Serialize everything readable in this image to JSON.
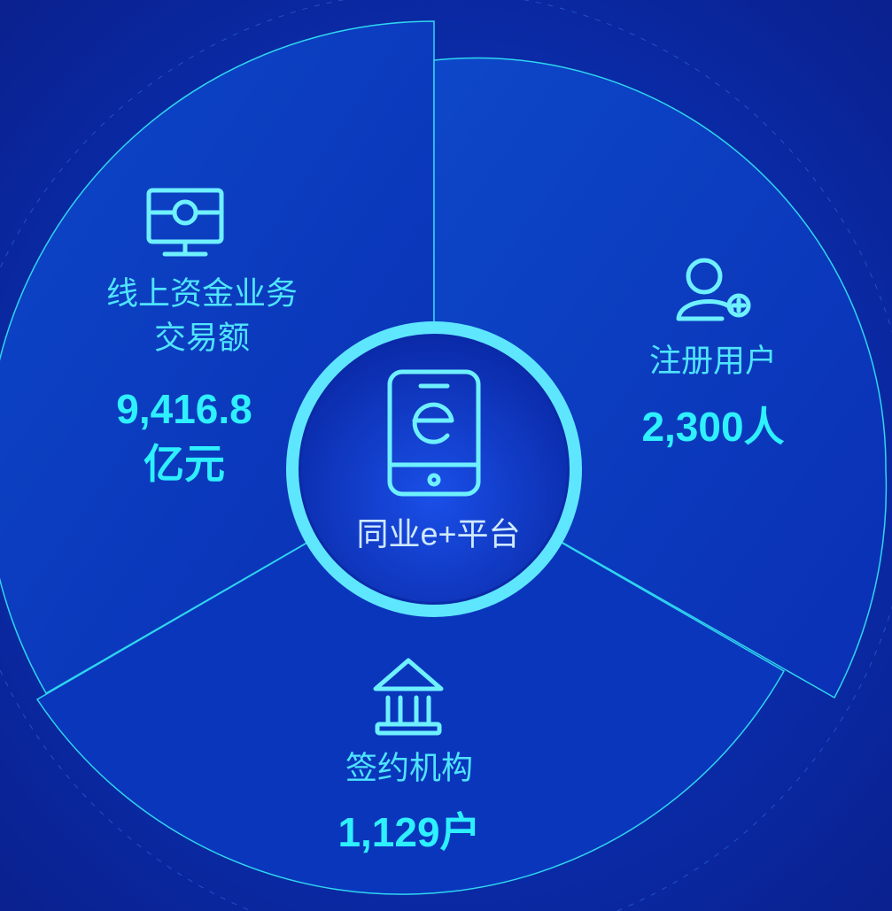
{
  "center": {
    "label": "同业e+平台"
  },
  "segments": [
    {
      "label_lines": [
        "线上资金业务",
        "交易额"
      ],
      "value_lines": [
        "9,416.8",
        "亿元"
      ]
    },
    {
      "label": "注册用户",
      "value": "2,300人"
    },
    {
      "label": "签约机构",
      "value": "1,129户"
    }
  ]
}
